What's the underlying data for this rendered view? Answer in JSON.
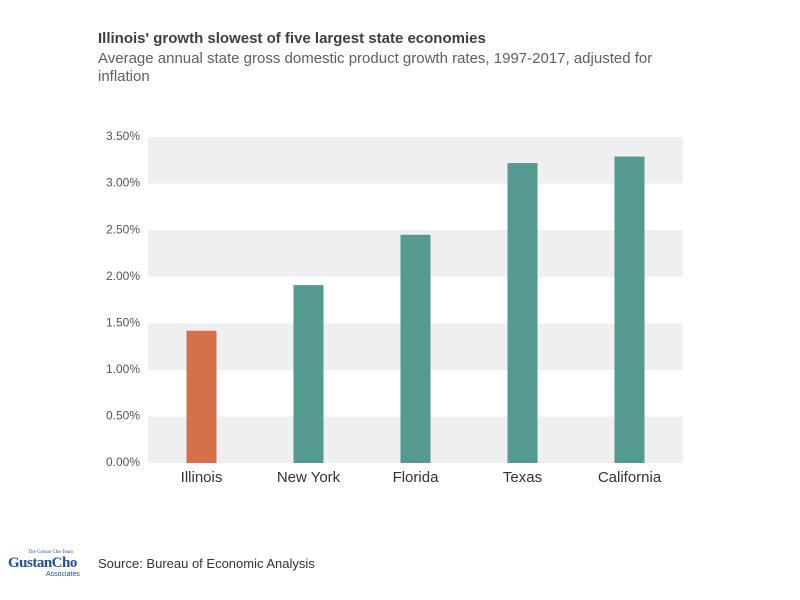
{
  "chart_data": {
    "type": "bar",
    "title": "Illinois' growth slowest of five largest state economies",
    "subtitle": "Average annual state gross domestic product growth rates, 1997-2017, adjusted for inflation",
    "categories": [
      "Illinois",
      "New York",
      "Florida",
      "Texas",
      "California"
    ],
    "values": [
      1.42,
      1.91,
      2.45,
      3.22,
      3.29
    ],
    "colors": [
      "#d4704a",
      "#549a8e",
      "#549a8e",
      "#549a8e",
      "#549a8e"
    ],
    "ylim": [
      0,
      3.5
    ],
    "yticks": [
      {
        "value": 0,
        "label": "0.00%"
      },
      {
        "value": 0.5,
        "label": "0.50%"
      },
      {
        "value": 1,
        "label": "1.00%"
      },
      {
        "value": 1.5,
        "label": "1.50%"
      },
      {
        "value": 2,
        "label": "2.00%"
      },
      {
        "value": 2.5,
        "label": "2.50%"
      },
      {
        "value": 3,
        "label": "3.00%"
      },
      {
        "value": 3.5,
        "label": "3.50%"
      }
    ],
    "grid": true
  },
  "footer": {
    "source": "Source: Bureau of Economic Analysis",
    "logo": {
      "top": "The Gustan Cho Team",
      "main": "GustanCho",
      "sub": "Associates"
    }
  }
}
